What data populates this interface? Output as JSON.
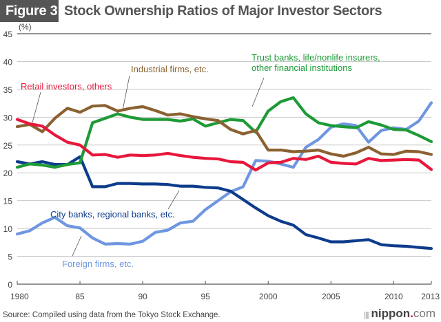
{
  "header": {
    "figure_label": "Figure 3",
    "title": "Stock Ownership Ratios of Major Investor Sectors"
  },
  "footer": {
    "source": "Source: Compiled using data from the Tokyo Stock Exchange.",
    "logo_name": "nippon",
    "logo_dot": ".",
    "logo_com": "com"
  },
  "chart_data": {
    "type": "line",
    "title": "Stock Ownership Ratios of Major Investor Sectors",
    "xlabel": "",
    "ylabel": "(%)",
    "ylim": [
      0,
      45
    ],
    "xlim": [
      1980,
      2013
    ],
    "grid": true,
    "legend": "inline-annotations",
    "yticks": [
      0,
      5,
      10,
      15,
      20,
      25,
      30,
      35,
      40,
      45
    ],
    "xticks": [
      {
        "year": 1980,
        "label": "1980"
      },
      {
        "year": 1985,
        "label": "85"
      },
      {
        "year": 1990,
        "label": "90"
      },
      {
        "year": 1995,
        "label": "95"
      },
      {
        "year": 2000,
        "label": "2000"
      },
      {
        "year": 2005,
        "label": "2005"
      },
      {
        "year": 2010,
        "label": "2010"
      },
      {
        "year": 2013,
        "label": "2013"
      }
    ],
    "x": [
      1980,
      1981,
      1982,
      1983,
      1984,
      1985,
      1986,
      1987,
      1988,
      1989,
      1990,
      1991,
      1992,
      1993,
      1994,
      1995,
      1996,
      1997,
      1998,
      1999,
      2000,
      2001,
      2002,
      2003,
      2004,
      2005,
      2006,
      2007,
      2008,
      2009,
      2010,
      2011,
      2012,
      2013
    ],
    "series": [
      {
        "name": "Retail investors, others",
        "color": "#e8173c",
        "values": [
          29.6,
          28.8,
          28.4,
          26.8,
          25.5,
          25.0,
          23.2,
          23.3,
          22.8,
          23.2,
          23.1,
          23.2,
          23.5,
          23.1,
          22.8,
          22.6,
          22.5,
          22.0,
          21.9,
          20.5,
          21.8,
          21.9,
          22.6,
          22.4,
          23.0,
          21.9,
          21.7,
          21.6,
          22.6,
          22.2,
          22.3,
          22.4,
          22.3,
          20.6
        ]
      },
      {
        "name": "Industrial firms, etc.",
        "color": "#8b6131",
        "values": [
          28.3,
          28.7,
          27.4,
          29.8,
          31.6,
          30.9,
          32.0,
          32.1,
          31.1,
          31.6,
          31.9,
          31.2,
          30.4,
          30.6,
          30.1,
          29.7,
          29.4,
          27.8,
          27.0,
          27.6,
          24.1,
          24.1,
          23.8,
          23.9,
          24.1,
          23.4,
          23.0,
          23.6,
          24.6,
          23.4,
          23.3,
          23.9,
          23.8,
          23.3
        ]
      },
      {
        "name": "Trust banks, life/nonlife insurers, other financial institutions",
        "color": "#1e9a36",
        "values": [
          21.0,
          21.6,
          21.4,
          21.0,
          21.5,
          21.8,
          29.0,
          29.8,
          30.6,
          30.0,
          29.6,
          29.6,
          29.6,
          29.3,
          29.7,
          28.4,
          29.0,
          29.6,
          29.4,
          27.3,
          31.1,
          32.8,
          33.5,
          30.6,
          29.0,
          28.5,
          28.3,
          28.1,
          29.2,
          28.6,
          27.8,
          27.7,
          26.7,
          25.6
        ]
      },
      {
        "name": "City banks, regional banks, etc.",
        "color": "#0e3c8c",
        "values": [
          22.0,
          21.6,
          22.0,
          21.5,
          21.5,
          22.9,
          17.5,
          17.5,
          18.1,
          18.1,
          18.0,
          18.0,
          17.9,
          17.6,
          17.6,
          17.4,
          17.3,
          16.7,
          15.2,
          13.7,
          12.3,
          11.3,
          10.6,
          8.9,
          8.3,
          7.6,
          7.6,
          7.8,
          8.0,
          7.1,
          6.9,
          6.8,
          6.6,
          6.4
        ]
      },
      {
        "name": "Foreign firms, etc.",
        "color": "#6f96e0",
        "values": [
          9.0,
          9.6,
          11.0,
          12.0,
          10.5,
          10.1,
          8.3,
          7.2,
          7.3,
          7.2,
          7.7,
          9.3,
          9.7,
          11.0,
          11.3,
          13.4,
          15.0,
          16.6,
          17.5,
          22.2,
          22.1,
          21.6,
          21.0,
          24.6,
          26.0,
          28.2,
          28.8,
          28.5,
          25.5,
          27.6,
          28.1,
          27.8,
          29.3,
          32.6
        ]
      }
    ],
    "annotations": [
      {
        "series": 0,
        "text_lines": [
          "Retail investors, others"
        ],
        "color": "#e8173c"
      },
      {
        "series": 1,
        "text_lines": [
          "Industrial firms, etc."
        ],
        "color": "#8b6131"
      },
      {
        "series": 2,
        "text_lines": [
          "Trust banks, life/nonlife insurers,",
          "other financial institutions"
        ],
        "color": "#1e9a36"
      },
      {
        "series": 3,
        "text_lines": [
          "City banks, regional banks, etc."
        ],
        "color": "#0e3c8c"
      },
      {
        "series": 4,
        "text_lines": [
          "Foreign firms, etc."
        ],
        "color": "#6f96e0"
      }
    ]
  }
}
